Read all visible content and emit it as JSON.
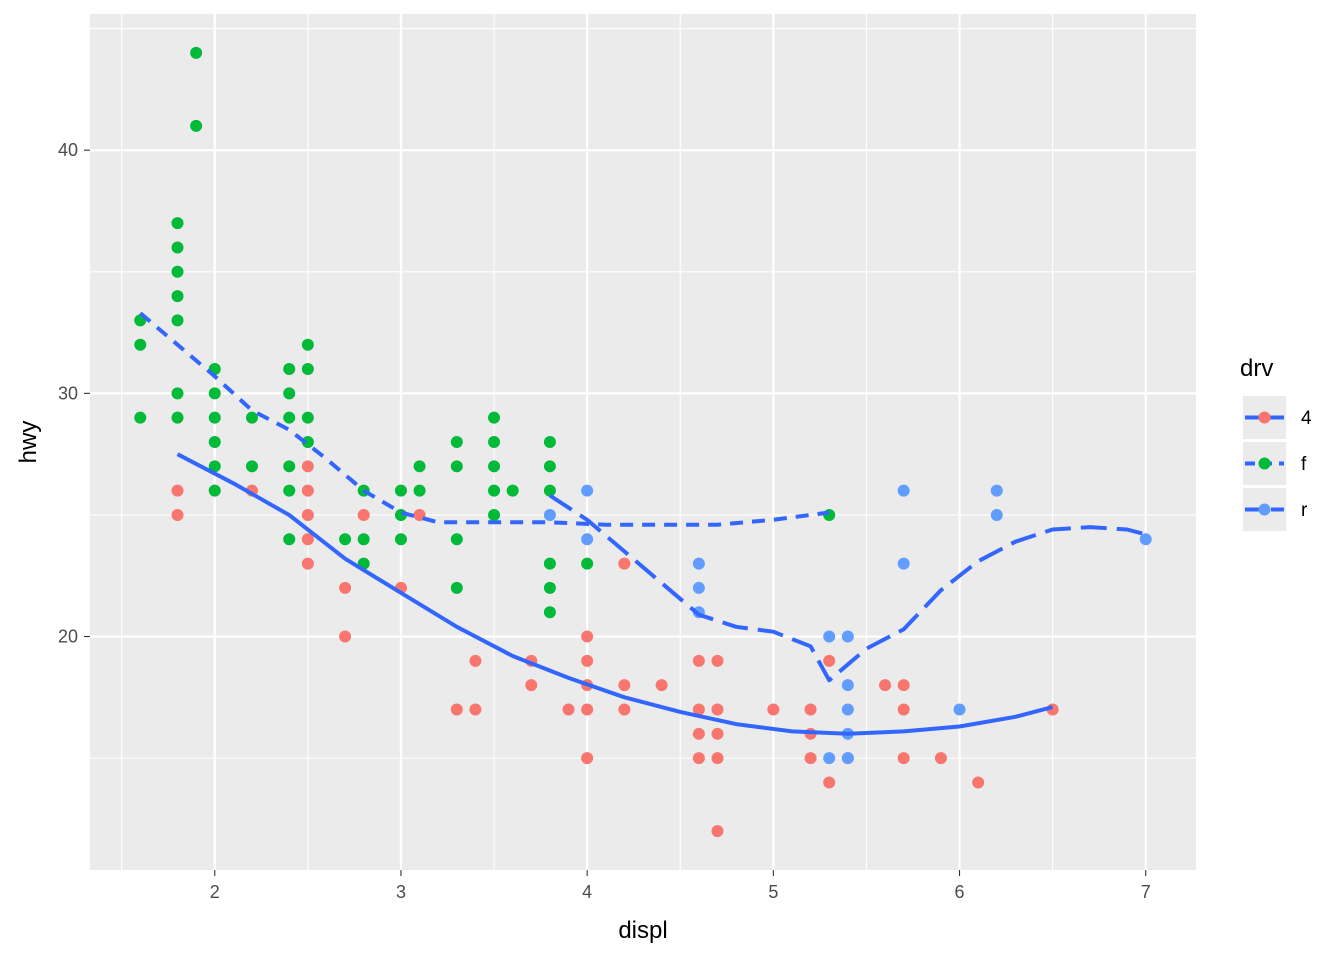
{
  "chart_data": {
    "type": "scatter",
    "xlabel": "displ",
    "ylabel": "hwy",
    "xlim": [
      1.33,
      7.27
    ],
    "ylim": [
      10.4,
      45.6
    ],
    "x_ticks": [
      2,
      3,
      4,
      5,
      6,
      7
    ],
    "y_ticks": [
      20,
      30,
      40
    ],
    "grid": true,
    "legend": {
      "title": "drv",
      "position": "right"
    },
    "colors": {
      "4": "#F8766D",
      "f": "#00BA38",
      "r": "#619CFF",
      "smooth": "#3366FF",
      "panel": "#EBEBEB",
      "grid": "#FFFFFF"
    },
    "series": [
      {
        "name": "4",
        "points": [
          [
            1.8,
            26
          ],
          [
            1.8,
            25
          ],
          [
            2.2,
            26
          ],
          [
            2.5,
            27
          ],
          [
            2.5,
            26
          ],
          [
            2.5,
            25
          ],
          [
            2.5,
            24
          ],
          [
            2.5,
            23
          ],
          [
            2.7,
            22
          ],
          [
            2.7,
            20
          ],
          [
            2.8,
            25
          ],
          [
            3.0,
            22
          ],
          [
            3.1,
            25
          ],
          [
            3.3,
            17
          ],
          [
            3.4,
            19
          ],
          [
            3.4,
            17
          ],
          [
            3.7,
            19
          ],
          [
            3.7,
            18
          ],
          [
            3.9,
            17
          ],
          [
            4.0,
            20
          ],
          [
            4.0,
            19
          ],
          [
            4.0,
            18
          ],
          [
            4.0,
            17
          ],
          [
            4.0,
            15
          ],
          [
            4.2,
            23
          ],
          [
            4.2,
            18
          ],
          [
            4.2,
            17
          ],
          [
            4.4,
            18
          ],
          [
            4.6,
            19
          ],
          [
            4.6,
            17
          ],
          [
            4.6,
            16
          ],
          [
            4.6,
            15
          ],
          [
            4.7,
            19
          ],
          [
            4.7,
            17
          ],
          [
            4.7,
            16
          ],
          [
            4.7,
            15
          ],
          [
            4.7,
            12
          ],
          [
            5.0,
            17
          ],
          [
            5.2,
            17
          ],
          [
            5.2,
            16
          ],
          [
            5.2,
            15
          ],
          [
            5.3,
            19
          ],
          [
            5.3,
            14
          ],
          [
            5.4,
            15
          ],
          [
            5.6,
            18
          ],
          [
            5.7,
            18
          ],
          [
            5.7,
            17
          ],
          [
            5.7,
            15
          ],
          [
            5.9,
            15
          ],
          [
            6.1,
            14
          ],
          [
            6.5,
            17
          ]
        ],
        "smooth": [
          [
            1.8,
            27.5
          ],
          [
            2.1,
            26.3
          ],
          [
            2.4,
            25.0
          ],
          [
            2.7,
            23.2
          ],
          [
            3.0,
            21.8
          ],
          [
            3.3,
            20.4
          ],
          [
            3.6,
            19.2
          ],
          [
            3.9,
            18.3
          ],
          [
            4.2,
            17.5
          ],
          [
            4.5,
            16.9
          ],
          [
            4.8,
            16.4
          ],
          [
            5.1,
            16.1
          ],
          [
            5.4,
            16.0
          ],
          [
            5.7,
            16.1
          ],
          [
            6.0,
            16.3
          ],
          [
            6.3,
            16.7
          ],
          [
            6.5,
            17.1
          ]
        ],
        "line_style": "solid"
      },
      {
        "name": "f",
        "points": [
          [
            1.6,
            33
          ],
          [
            1.6,
            32
          ],
          [
            1.6,
            29
          ],
          [
            1.8,
            37
          ],
          [
            1.8,
            36
          ],
          [
            1.8,
            35
          ],
          [
            1.8,
            34
          ],
          [
            1.8,
            33
          ],
          [
            1.8,
            30
          ],
          [
            1.8,
            29
          ],
          [
            1.9,
            44
          ],
          [
            1.9,
            41
          ],
          [
            2.0,
            31
          ],
          [
            2.0,
            30
          ],
          [
            2.0,
            29
          ],
          [
            2.0,
            28
          ],
          [
            2.0,
            27
          ],
          [
            2.0,
            26
          ],
          [
            2.2,
            29
          ],
          [
            2.2,
            27
          ],
          [
            2.4,
            31
          ],
          [
            2.4,
            30
          ],
          [
            2.4,
            29
          ],
          [
            2.4,
            27
          ],
          [
            2.4,
            26
          ],
          [
            2.4,
            24
          ],
          [
            2.5,
            32
          ],
          [
            2.5,
            31
          ],
          [
            2.5,
            29
          ],
          [
            2.5,
            28
          ],
          [
            2.7,
            24
          ],
          [
            2.8,
            26
          ],
          [
            2.8,
            24
          ],
          [
            2.8,
            23
          ],
          [
            3.0,
            26
          ],
          [
            3.0,
            25
          ],
          [
            3.0,
            24
          ],
          [
            3.1,
            27
          ],
          [
            3.1,
            26
          ],
          [
            3.3,
            28
          ],
          [
            3.3,
            27
          ],
          [
            3.3,
            24
          ],
          [
            3.3,
            22
          ],
          [
            3.5,
            29
          ],
          [
            3.5,
            28
          ],
          [
            3.5,
            27
          ],
          [
            3.5,
            26
          ],
          [
            3.5,
            25
          ],
          [
            3.6,
            26
          ],
          [
            3.8,
            28
          ],
          [
            3.8,
            27
          ],
          [
            3.8,
            26
          ],
          [
            3.8,
            23
          ],
          [
            3.8,
            22
          ],
          [
            3.8,
            21
          ],
          [
            4.0,
            23
          ],
          [
            5.3,
            25
          ]
        ],
        "smooth": [
          [
            1.6,
            33.3
          ],
          [
            1.8,
            32.0
          ],
          [
            2.0,
            30.7
          ],
          [
            2.2,
            29.3
          ],
          [
            2.4,
            28.5
          ],
          [
            2.6,
            27.3
          ],
          [
            2.8,
            26.0
          ],
          [
            3.0,
            25.1
          ],
          [
            3.2,
            24.7
          ],
          [
            3.5,
            24.7
          ],
          [
            3.8,
            24.7
          ],
          [
            4.1,
            24.6
          ],
          [
            4.4,
            24.6
          ],
          [
            4.7,
            24.6
          ],
          [
            5.0,
            24.8
          ],
          [
            5.3,
            25.1
          ]
        ],
        "line_style": "dashed"
      },
      {
        "name": "r",
        "points": [
          [
            3.8,
            25
          ],
          [
            4.0,
            26
          ],
          [
            4.0,
            24
          ],
          [
            4.6,
            23
          ],
          [
            4.6,
            22
          ],
          [
            4.6,
            21
          ],
          [
            5.3,
            20
          ],
          [
            5.3,
            15
          ],
          [
            5.4,
            20
          ],
          [
            5.4,
            18
          ],
          [
            5.4,
            17
          ],
          [
            5.4,
            16
          ],
          [
            5.4,
            15
          ],
          [
            5.7,
            26
          ],
          [
            5.7,
            23
          ],
          [
            6.0,
            17
          ],
          [
            6.2,
            26
          ],
          [
            6.2,
            25
          ],
          [
            7.0,
            24
          ]
        ],
        "smooth": [
          [
            3.8,
            25.8
          ],
          [
            4.0,
            24.8
          ],
          [
            4.2,
            23.5
          ],
          [
            4.4,
            22.2
          ],
          [
            4.6,
            20.9
          ],
          [
            4.8,
            20.4
          ],
          [
            5.0,
            20.2
          ],
          [
            5.2,
            19.6
          ],
          [
            5.3,
            18.2
          ],
          [
            5.5,
            19.5
          ],
          [
            5.7,
            20.3
          ],
          [
            5.9,
            21.9
          ],
          [
            6.1,
            23.1
          ],
          [
            6.3,
            23.9
          ],
          [
            6.5,
            24.4
          ],
          [
            6.7,
            24.5
          ],
          [
            6.9,
            24.4
          ],
          [
            7.0,
            24.2
          ]
        ],
        "line_style": "longdash"
      }
    ]
  }
}
